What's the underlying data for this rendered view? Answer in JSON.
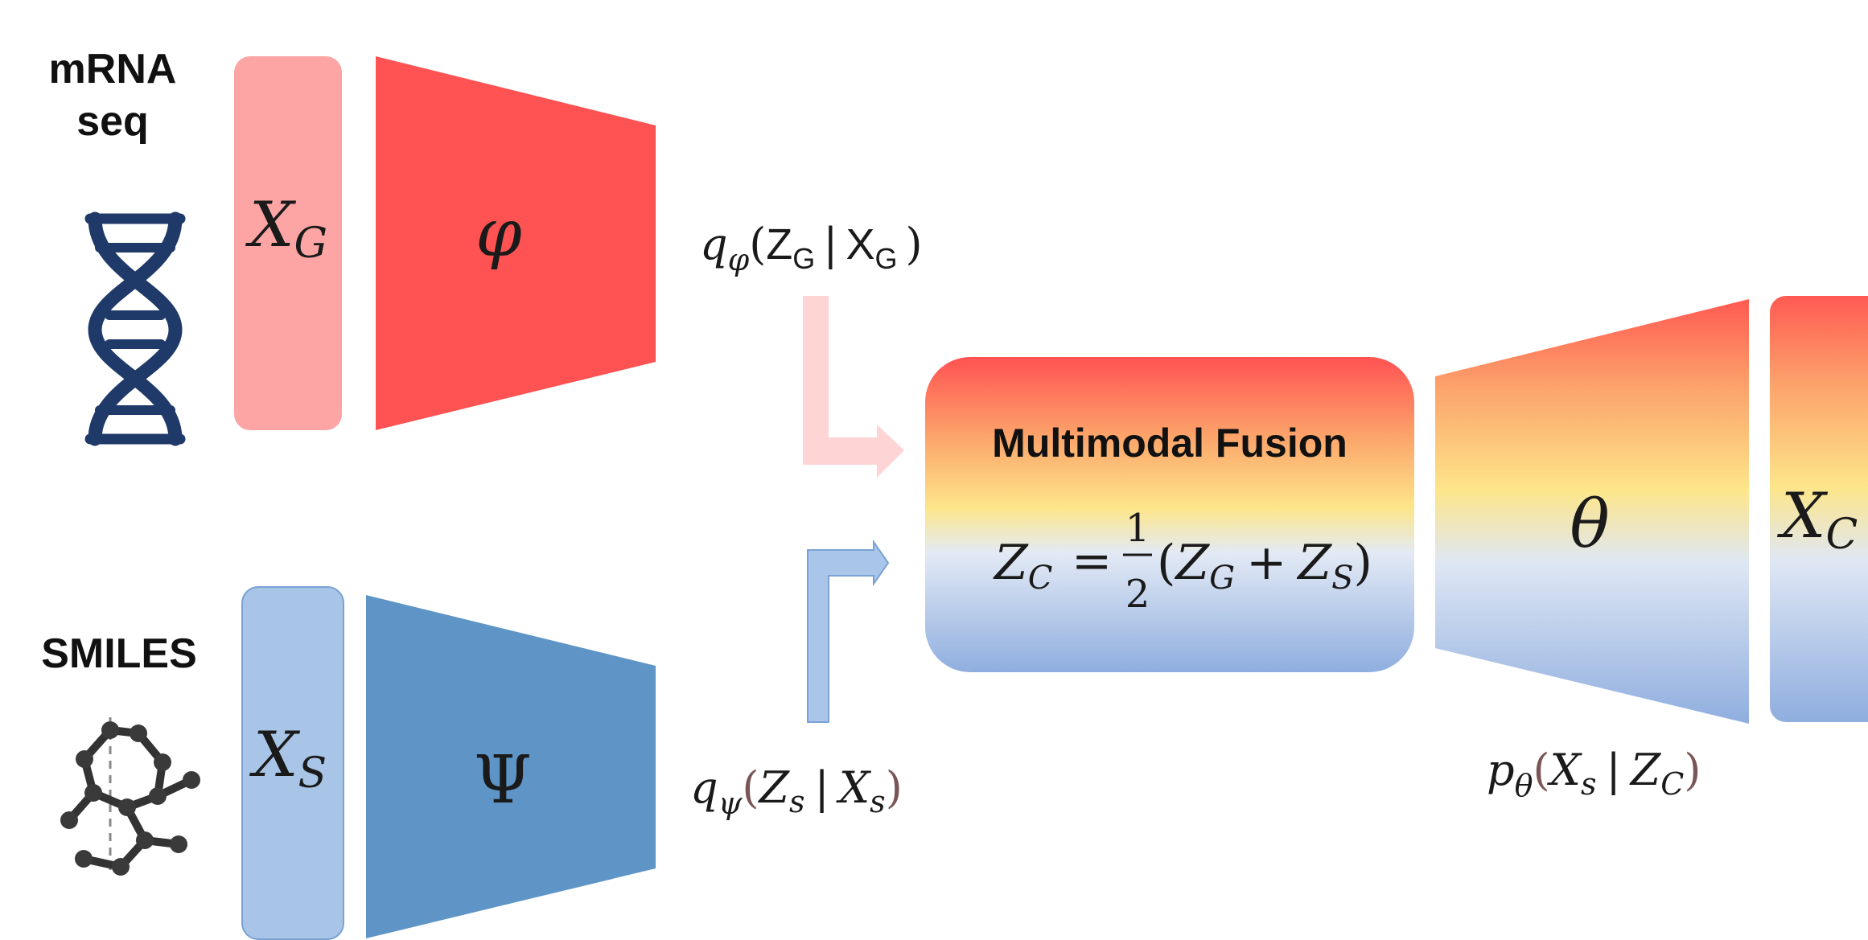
{
  "inputs": {
    "mrna": {
      "label_line1": "mRNA",
      "label_line2": "seq",
      "icon": "dna-icon"
    },
    "smiles": {
      "label": "SMILES",
      "icon": "molecule-icon"
    }
  },
  "boxes": {
    "xg": {
      "symbol": "X",
      "subscript": "G"
    },
    "xs": {
      "symbol": "X",
      "subscript": "S"
    },
    "xc": {
      "symbol": "X",
      "subscript": "C"
    }
  },
  "encoders": {
    "phi": {
      "symbol": "φ"
    },
    "psi": {
      "symbol": "Ψ"
    }
  },
  "decoder": {
    "symbol": "θ"
  },
  "posteriors": {
    "q_phi": {
      "q": "q",
      "param": "φ",
      "z": "Z",
      "z_sub": "G",
      "bar": "|",
      "x": "X",
      "x_sub": "G"
    },
    "q_psi": {
      "q": "q",
      "param": "ψ",
      "z": "Z",
      "z_sub": "s",
      "bar": "|",
      "x": "X",
      "x_sub": "s"
    },
    "p_theta": {
      "p": "p",
      "param": "θ",
      "x": "X",
      "x_sub": "s",
      "bar": "|",
      "z": "Z",
      "z_sub": "C"
    }
  },
  "fusion": {
    "title": "Multimodal Fusion",
    "lhs": "Z",
    "lhs_sub": "C",
    "eq": "=",
    "num": "1",
    "den": "2",
    "open": "(",
    "z1": "Z",
    "z1_sub": "G",
    "plus": "+",
    "z2": "Z",
    "z2_sub": "S",
    "close": ")"
  },
  "colors": {
    "red_box": "#fda4a4",
    "red_trapezoid": "#ff5252",
    "blue_box": "#a8c4e6",
    "blue_trapezoid": "#5e95c6",
    "dna": "#1f3a68",
    "arrow_red": "#ffd4d4",
    "arrow_blue": "#a9c6ea",
    "gradient_red": "#ff5252",
    "gradient_yellow": "#fde68a",
    "gradient_blue": "#8faedf"
  }
}
